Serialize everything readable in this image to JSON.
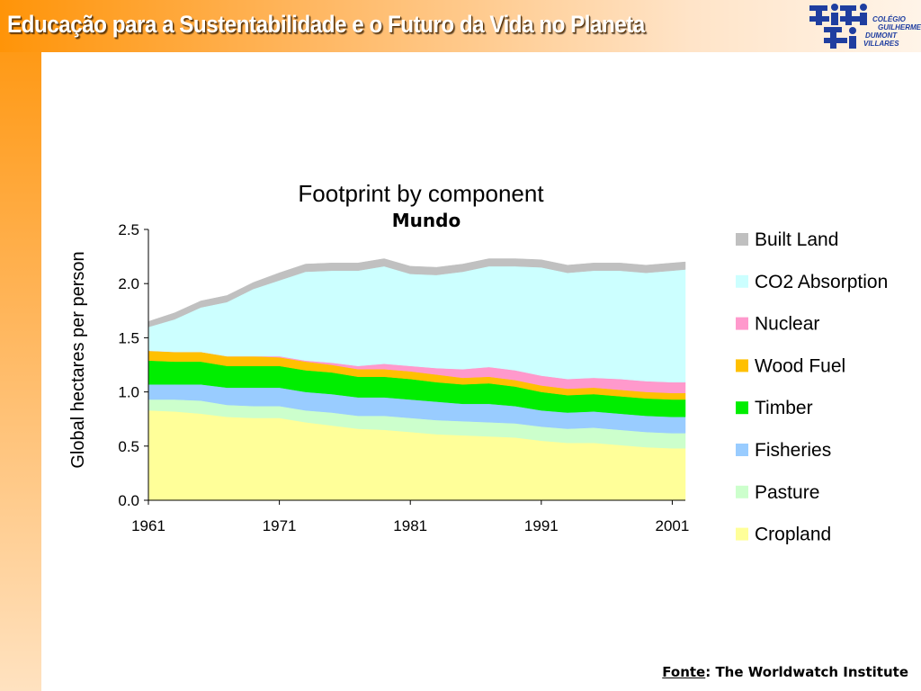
{
  "header": {
    "title": "Educação para a Sustentabilidade e o Futuro da Vida no Planeta",
    "logo_lines": [
      "COLÉGIO",
      "GUILHERME",
      "DUMONT",
      "VILLARES"
    ]
  },
  "footer": {
    "source_label": "Fonte",
    "source_text": ": The Worldwatch Institute"
  },
  "colors": {
    "accent_orange": "#ff9408",
    "logo_blue": "#1f3ea0"
  },
  "chart_data": {
    "type": "area",
    "title": "Footprint by component",
    "subtitle": "Mundo",
    "xlabel": "",
    "ylabel": "Global hectares per person",
    "xlim": [
      1961,
      2002
    ],
    "ylim": [
      0,
      2.5
    ],
    "y_ticks": [
      "0.0",
      "0.5",
      "1.0",
      "1.5",
      "2.0",
      "2.5"
    ],
    "x_ticks": [
      "1961",
      "1971",
      "1981",
      "1991",
      "2001"
    ],
    "grid": false,
    "legend_position": "right",
    "stacked": true,
    "x": [
      1961,
      1963,
      1965,
      1967,
      1969,
      1971,
      1973,
      1975,
      1977,
      1979,
      1981,
      1983,
      1985,
      1987,
      1989,
      1991,
      1993,
      1995,
      1997,
      1999,
      2001,
      2002
    ],
    "series": [
      {
        "name": "Cropland",
        "color": "#ffff99",
        "values": [
          0.83,
          0.82,
          0.8,
          0.77,
          0.76,
          0.76,
          0.72,
          0.69,
          0.66,
          0.65,
          0.63,
          0.61,
          0.6,
          0.59,
          0.58,
          0.55,
          0.53,
          0.53,
          0.51,
          0.49,
          0.48,
          0.48
        ]
      },
      {
        "name": "Pasture",
        "color": "#ccffcc",
        "values": [
          0.1,
          0.11,
          0.12,
          0.11,
          0.11,
          0.11,
          0.11,
          0.12,
          0.12,
          0.13,
          0.13,
          0.13,
          0.13,
          0.13,
          0.13,
          0.13,
          0.13,
          0.14,
          0.14,
          0.14,
          0.14,
          0.14
        ]
      },
      {
        "name": "Fisheries",
        "color": "#99ccff",
        "values": [
          0.14,
          0.14,
          0.15,
          0.16,
          0.17,
          0.17,
          0.17,
          0.17,
          0.17,
          0.17,
          0.17,
          0.17,
          0.16,
          0.17,
          0.16,
          0.15,
          0.15,
          0.15,
          0.15,
          0.15,
          0.15,
          0.15
        ]
      },
      {
        "name": "Timber",
        "color": "#00ee00",
        "values": [
          0.22,
          0.21,
          0.21,
          0.2,
          0.2,
          0.2,
          0.2,
          0.2,
          0.19,
          0.19,
          0.19,
          0.18,
          0.18,
          0.19,
          0.18,
          0.17,
          0.16,
          0.16,
          0.16,
          0.16,
          0.16,
          0.16
        ]
      },
      {
        "name": "Wood Fuel",
        "color": "#ffc000",
        "values": [
          0.09,
          0.09,
          0.09,
          0.09,
          0.09,
          0.08,
          0.08,
          0.07,
          0.07,
          0.07,
          0.07,
          0.07,
          0.06,
          0.06,
          0.06,
          0.06,
          0.06,
          0.06,
          0.06,
          0.06,
          0.06,
          0.06
        ]
      },
      {
        "name": "Nuclear",
        "color": "#ff99cc",
        "values": [
          0.0,
          0.0,
          0.0,
          0.0,
          0.0,
          0.01,
          0.01,
          0.02,
          0.03,
          0.05,
          0.05,
          0.06,
          0.08,
          0.09,
          0.09,
          0.09,
          0.09,
          0.09,
          0.1,
          0.1,
          0.1,
          0.1
        ]
      },
      {
        "name": "CO2 Absorption",
        "color": "#ccffff",
        "values": [
          0.22,
          0.3,
          0.41,
          0.5,
          0.62,
          0.7,
          0.82,
          0.85,
          0.88,
          0.9,
          0.85,
          0.86,
          0.9,
          0.93,
          0.96,
          1.0,
          0.98,
          0.99,
          1.0,
          1.0,
          1.03,
          1.04
        ]
      },
      {
        "name": "Built Land",
        "color": "#c0c0c0",
        "values": [
          0.05,
          0.06,
          0.06,
          0.06,
          0.06,
          0.07,
          0.07,
          0.07,
          0.07,
          0.07,
          0.07,
          0.07,
          0.07,
          0.07,
          0.07,
          0.07,
          0.07,
          0.07,
          0.07,
          0.07,
          0.07,
          0.07
        ]
      }
    ],
    "legend_order": [
      "Built Land",
      "CO2 Absorption",
      "Nuclear",
      "Wood Fuel",
      "Timber",
      "Fisheries",
      "Pasture",
      "Cropland"
    ]
  }
}
